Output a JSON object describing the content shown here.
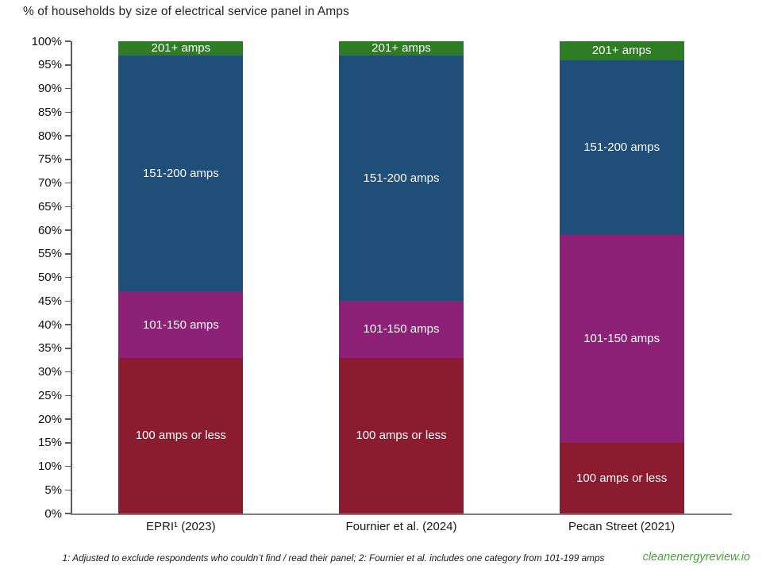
{
  "chart_data": {
    "type": "bar",
    "stacked": true,
    "title": "% of households by size of electrical service panel in Amps",
    "categories": [
      "EPRI¹ (2023)",
      "Fournier et al. (2024)",
      "Pecan Street (2021)"
    ],
    "series": [
      {
        "name": "100 amps or less",
        "color": "#8B1B2E",
        "values": [
          33,
          33,
          15
        ]
      },
      {
        "name": "101-150 amps",
        "color": "#8C2176",
        "values": [
          14,
          12,
          44
        ]
      },
      {
        "name": "151-200 amps",
        "color": "#1F4E79",
        "values": [
          50,
          52,
          37
        ]
      },
      {
        "name": "201+ amps",
        "color": "#2E7D24",
        "values": [
          3,
          3,
          4
        ]
      }
    ],
    "ylim": [
      0,
      100
    ],
    "ytick_step": 5,
    "ytick_suffix": "%",
    "xlabel": "",
    "ylabel": "",
    "grid": false,
    "legend": "none (labels inside segments)"
  },
  "footnote": "1: Adjusted to exclude respondents who couldn’t find / read their panel; 2: Fournier et al. includes one category from 101-199 amps",
  "brand": "cleanenergyreview.io",
  "colors": {
    "segment_100_or_less": "#8B1B2E",
    "segment_101_150": "#8C2176",
    "segment_151_200": "#1F4E79",
    "segment_201_plus": "#2E7D24",
    "brand_green": "#4ba23c",
    "axis_line": "#595959",
    "baseline": "#7f7f7f",
    "text": "#1a1a1a"
  }
}
